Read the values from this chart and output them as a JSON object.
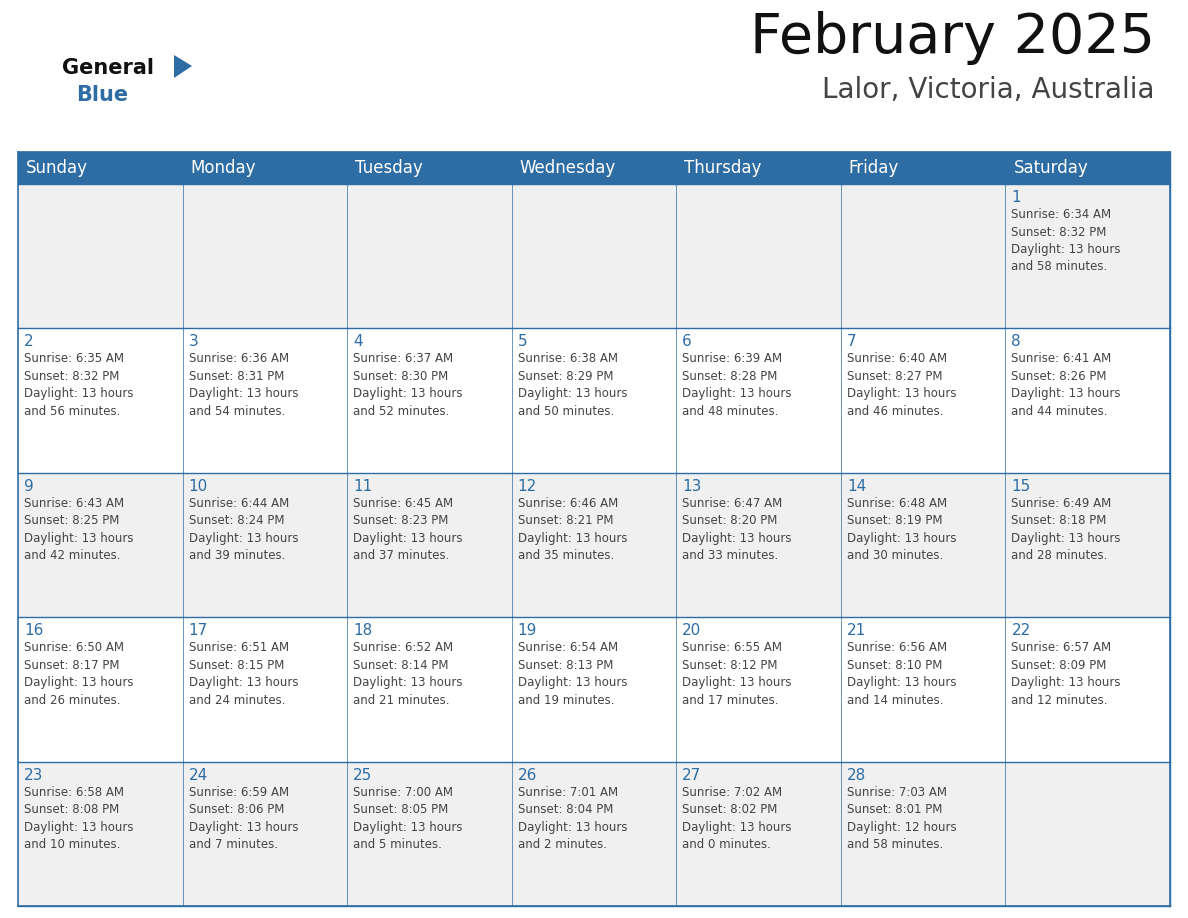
{
  "title": "February 2025",
  "subtitle": "Lalor, Victoria, Australia",
  "days_of_week": [
    "Sunday",
    "Monday",
    "Tuesday",
    "Wednesday",
    "Thursday",
    "Friday",
    "Saturday"
  ],
  "header_bg": "#2E6DA4",
  "header_text": "#FFFFFF",
  "cell_bg_light": "#F0F0F0",
  "cell_bg_white": "#FFFFFF",
  "cell_border": "#2E6DA4",
  "day_number_color": "#2E6DA4",
  "cell_text_color": "#444444",
  "title_color": "#111111",
  "subtitle_color": "#444444",
  "logo_general_color": "#111111",
  "logo_blue_color": "#2E6DA4",
  "weeks": [
    [
      {
        "day": null,
        "info": null
      },
      {
        "day": null,
        "info": null
      },
      {
        "day": null,
        "info": null
      },
      {
        "day": null,
        "info": null
      },
      {
        "day": null,
        "info": null
      },
      {
        "day": null,
        "info": null
      },
      {
        "day": 1,
        "info": "Sunrise: 6:34 AM\nSunset: 8:32 PM\nDaylight: 13 hours\nand 58 minutes."
      }
    ],
    [
      {
        "day": 2,
        "info": "Sunrise: 6:35 AM\nSunset: 8:32 PM\nDaylight: 13 hours\nand 56 minutes."
      },
      {
        "day": 3,
        "info": "Sunrise: 6:36 AM\nSunset: 8:31 PM\nDaylight: 13 hours\nand 54 minutes."
      },
      {
        "day": 4,
        "info": "Sunrise: 6:37 AM\nSunset: 8:30 PM\nDaylight: 13 hours\nand 52 minutes."
      },
      {
        "day": 5,
        "info": "Sunrise: 6:38 AM\nSunset: 8:29 PM\nDaylight: 13 hours\nand 50 minutes."
      },
      {
        "day": 6,
        "info": "Sunrise: 6:39 AM\nSunset: 8:28 PM\nDaylight: 13 hours\nand 48 minutes."
      },
      {
        "day": 7,
        "info": "Sunrise: 6:40 AM\nSunset: 8:27 PM\nDaylight: 13 hours\nand 46 minutes."
      },
      {
        "day": 8,
        "info": "Sunrise: 6:41 AM\nSunset: 8:26 PM\nDaylight: 13 hours\nand 44 minutes."
      }
    ],
    [
      {
        "day": 9,
        "info": "Sunrise: 6:43 AM\nSunset: 8:25 PM\nDaylight: 13 hours\nand 42 minutes."
      },
      {
        "day": 10,
        "info": "Sunrise: 6:44 AM\nSunset: 8:24 PM\nDaylight: 13 hours\nand 39 minutes."
      },
      {
        "day": 11,
        "info": "Sunrise: 6:45 AM\nSunset: 8:23 PM\nDaylight: 13 hours\nand 37 minutes."
      },
      {
        "day": 12,
        "info": "Sunrise: 6:46 AM\nSunset: 8:21 PM\nDaylight: 13 hours\nand 35 minutes."
      },
      {
        "day": 13,
        "info": "Sunrise: 6:47 AM\nSunset: 8:20 PM\nDaylight: 13 hours\nand 33 minutes."
      },
      {
        "day": 14,
        "info": "Sunrise: 6:48 AM\nSunset: 8:19 PM\nDaylight: 13 hours\nand 30 minutes."
      },
      {
        "day": 15,
        "info": "Sunrise: 6:49 AM\nSunset: 8:18 PM\nDaylight: 13 hours\nand 28 minutes."
      }
    ],
    [
      {
        "day": 16,
        "info": "Sunrise: 6:50 AM\nSunset: 8:17 PM\nDaylight: 13 hours\nand 26 minutes."
      },
      {
        "day": 17,
        "info": "Sunrise: 6:51 AM\nSunset: 8:15 PM\nDaylight: 13 hours\nand 24 minutes."
      },
      {
        "day": 18,
        "info": "Sunrise: 6:52 AM\nSunset: 8:14 PM\nDaylight: 13 hours\nand 21 minutes."
      },
      {
        "day": 19,
        "info": "Sunrise: 6:54 AM\nSunset: 8:13 PM\nDaylight: 13 hours\nand 19 minutes."
      },
      {
        "day": 20,
        "info": "Sunrise: 6:55 AM\nSunset: 8:12 PM\nDaylight: 13 hours\nand 17 minutes."
      },
      {
        "day": 21,
        "info": "Sunrise: 6:56 AM\nSunset: 8:10 PM\nDaylight: 13 hours\nand 14 minutes."
      },
      {
        "day": 22,
        "info": "Sunrise: 6:57 AM\nSunset: 8:09 PM\nDaylight: 13 hours\nand 12 minutes."
      }
    ],
    [
      {
        "day": 23,
        "info": "Sunrise: 6:58 AM\nSunset: 8:08 PM\nDaylight: 13 hours\nand 10 minutes."
      },
      {
        "day": 24,
        "info": "Sunrise: 6:59 AM\nSunset: 8:06 PM\nDaylight: 13 hours\nand 7 minutes."
      },
      {
        "day": 25,
        "info": "Sunrise: 7:00 AM\nSunset: 8:05 PM\nDaylight: 13 hours\nand 5 minutes."
      },
      {
        "day": 26,
        "info": "Sunrise: 7:01 AM\nSunset: 8:04 PM\nDaylight: 13 hours\nand 2 minutes."
      },
      {
        "day": 27,
        "info": "Sunrise: 7:02 AM\nSunset: 8:02 PM\nDaylight: 13 hours\nand 0 minutes."
      },
      {
        "day": 28,
        "info": "Sunrise: 7:03 AM\nSunset: 8:01 PM\nDaylight: 12 hours\nand 58 minutes."
      },
      {
        "day": null,
        "info": null
      }
    ]
  ]
}
